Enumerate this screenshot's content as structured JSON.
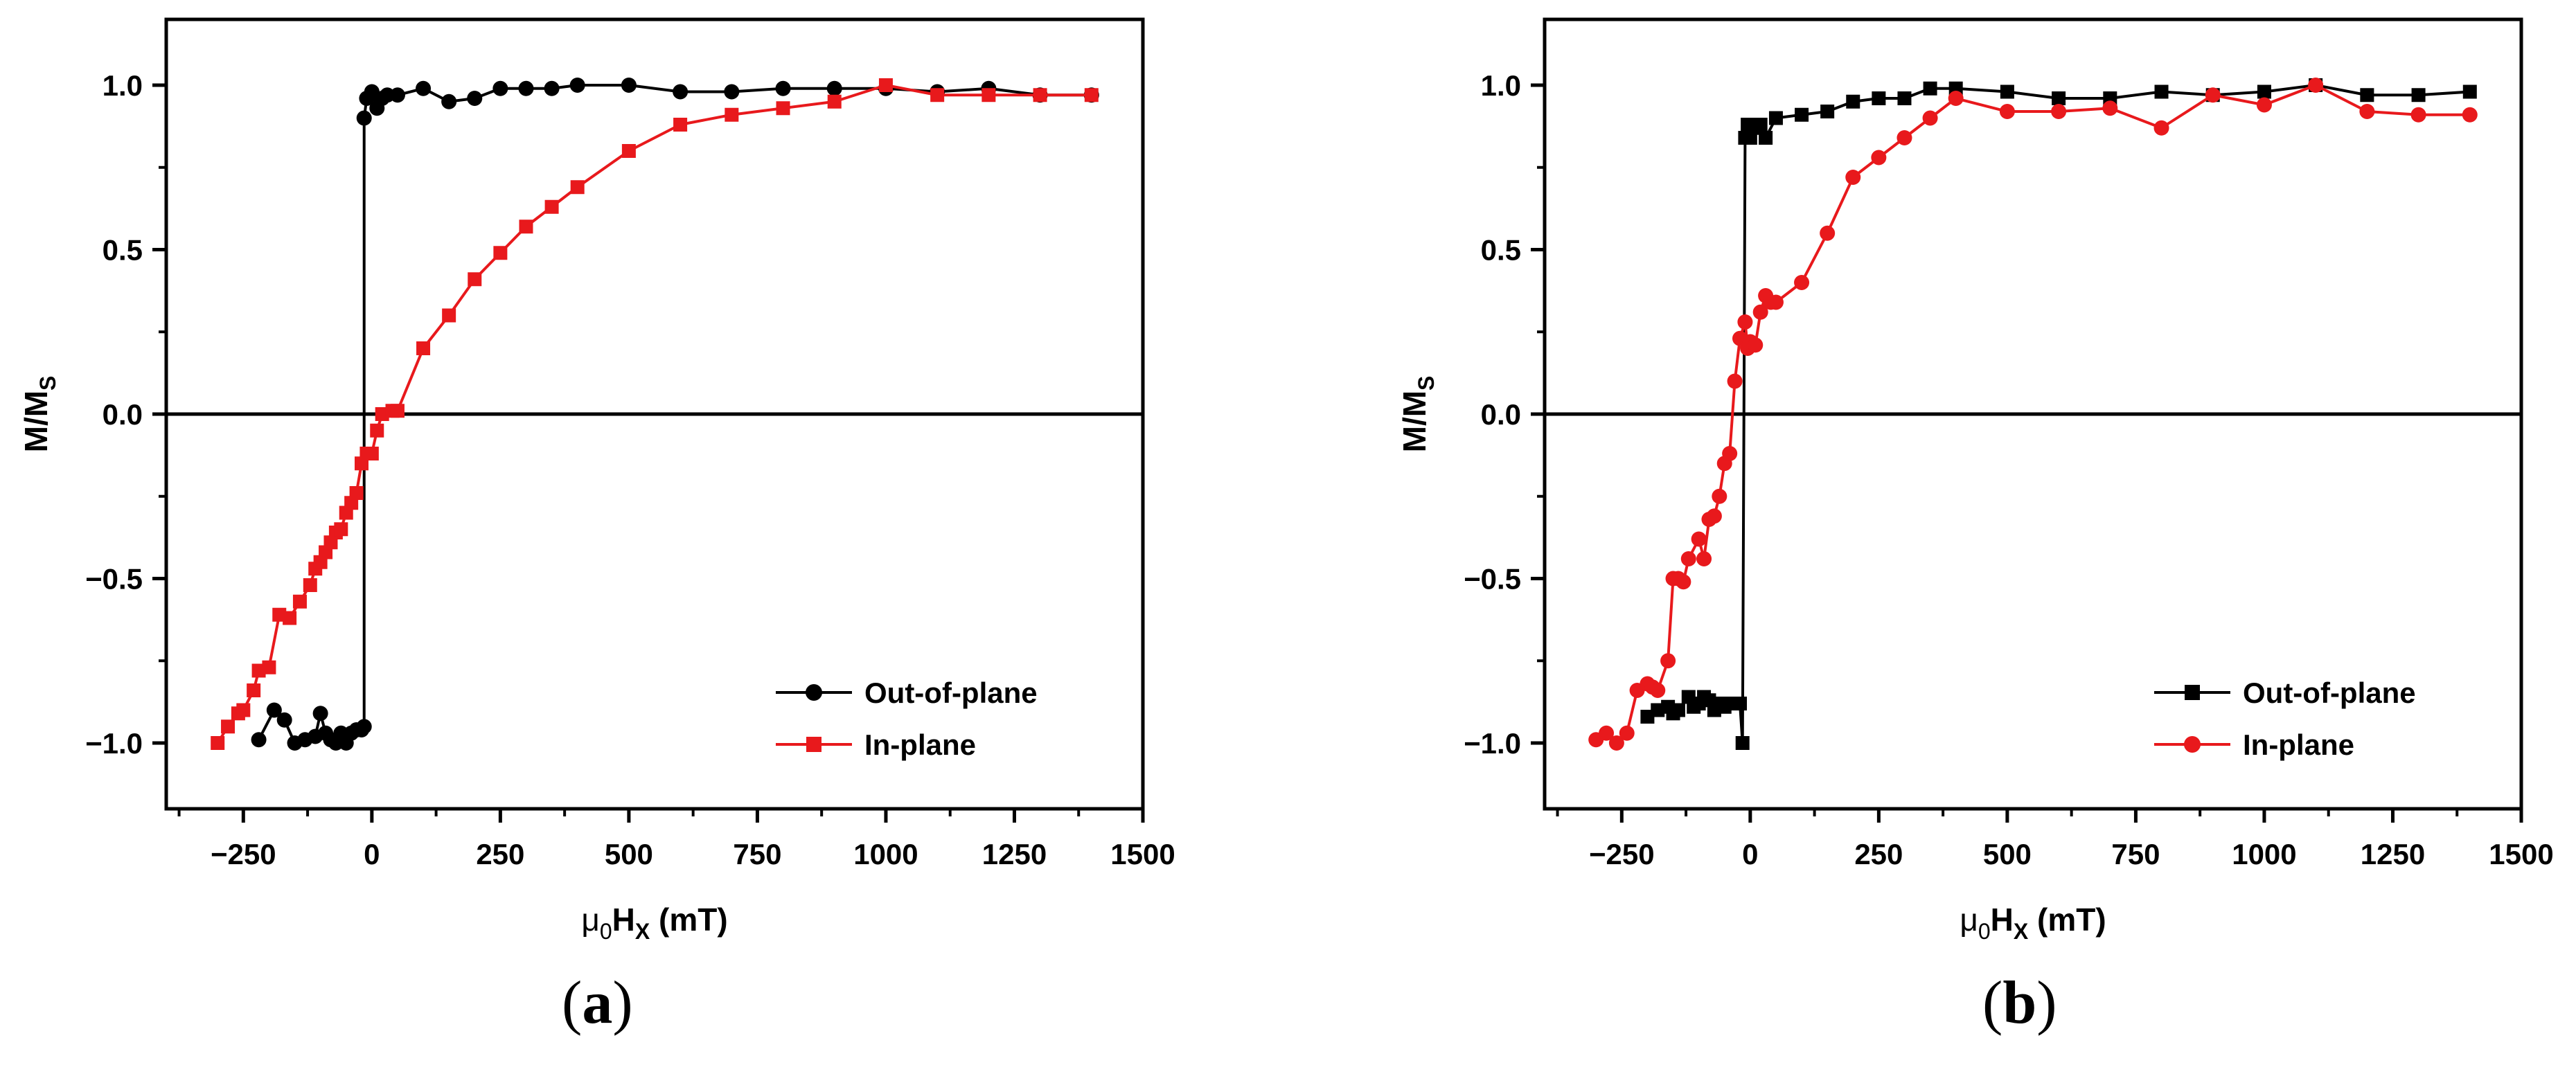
{
  "chart_data": [
    {
      "type": "line",
      "panel_label": "a",
      "xlabel_parts": [
        "μ",
        "0",
        "H",
        "X",
        " (mT)"
      ],
      "ylabel_parts": [
        "M/M",
        "S"
      ],
      "xlim": [
        -400,
        1500
      ],
      "ylim": [
        -1.2,
        1.2
      ],
      "xticks": [
        -250,
        0,
        250,
        500,
        750,
        1000,
        1250,
        1500
      ],
      "xtick_labels": [
        "−250",
        "0",
        "250",
        "500",
        "750",
        "1000",
        "1250",
        "1500"
      ],
      "yticks": [
        -1.0,
        -0.5,
        0.0,
        0.5,
        1.0
      ],
      "ytick_labels": [
        "−1.0",
        "−0.5",
        "0.0",
        "0.5",
        "1.0"
      ],
      "zero_line": true,
      "legend_position": "bottom-right",
      "series": [
        {
          "name": "Out-of-plane",
          "color": "#000000",
          "marker": "circle",
          "x": [
            -220,
            -190,
            -170,
            -150,
            -130,
            -110,
            -100,
            -90,
            -80,
            -70,
            -60,
            -50,
            -40,
            -30,
            -20,
            -15,
            -15,
            -10,
            0,
            10,
            20,
            30,
            50,
            100,
            150,
            200,
            250,
            300,
            350,
            400,
            500,
            600,
            700,
            800,
            900,
            1000,
            1100,
            1200,
            1300,
            1400
          ],
          "y": [
            -0.99,
            -0.9,
            -0.93,
            -1.0,
            -0.99,
            -0.98,
            -0.91,
            -0.97,
            -0.99,
            -1.0,
            -0.97,
            -1.0,
            -0.97,
            -0.96,
            -0.96,
            -0.95,
            0.9,
            0.96,
            0.98,
            0.93,
            0.96,
            0.97,
            0.97,
            0.99,
            0.95,
            0.96,
            0.99,
            0.99,
            0.99,
            1.0,
            1.0,
            0.98,
            0.98,
            0.99,
            0.99,
            0.99,
            0.98,
            0.99,
            0.97,
            0.97
          ]
        },
        {
          "name": "In-plane",
          "color": "#e8191c",
          "marker": "square",
          "x": [
            -300,
            -280,
            -260,
            -250,
            -230,
            -220,
            -200,
            -180,
            -160,
            -140,
            -120,
            -110,
            -100,
            -90,
            -80,
            -70,
            -60,
            -50,
            -40,
            -30,
            -20,
            -10,
            0,
            10,
            20,
            40,
            50,
            100,
            150,
            200,
            250,
            300,
            350,
            400,
            500,
            600,
            700,
            800,
            900,
            1000,
            1100,
            1200,
            1300,
            1400
          ],
          "y": [
            -1.0,
            -0.95,
            -0.91,
            -0.9,
            -0.84,
            -0.78,
            -0.77,
            -0.61,
            -0.62,
            -0.57,
            -0.52,
            -0.47,
            -0.45,
            -0.42,
            -0.39,
            -0.36,
            -0.35,
            -0.3,
            -0.27,
            -0.24,
            -0.15,
            -0.12,
            -0.12,
            -0.05,
            0.0,
            0.01,
            0.01,
            0.2,
            0.3,
            0.41,
            0.49,
            0.57,
            0.63,
            0.69,
            0.8,
            0.88,
            0.91,
            0.93,
            0.95,
            1.0,
            0.97,
            0.97,
            0.97,
            0.97
          ]
        }
      ]
    },
    {
      "type": "line",
      "panel_label": "b",
      "xlabel_parts": [
        "μ",
        "0",
        "H",
        "X",
        " (mT)"
      ],
      "ylabel_parts": [
        "M/M",
        "S"
      ],
      "xlim": [
        -400,
        1500
      ],
      "ylim": [
        -1.2,
        1.2
      ],
      "xticks": [
        -250,
        0,
        250,
        500,
        750,
        1000,
        1250,
        1500
      ],
      "xtick_labels": [
        "−250",
        "0",
        "250",
        "500",
        "750",
        "1000",
        "1250",
        "1500"
      ],
      "yticks": [
        -1.0,
        -0.5,
        0.0,
        0.5,
        1.0
      ],
      "ytick_labels": [
        "−1.0",
        "−0.5",
        "0.0",
        "0.5",
        "1.0"
      ],
      "zero_line": true,
      "legend_position": "bottom-right",
      "series": [
        {
          "name": "Out-of-plane",
          "color": "#000000",
          "marker": "square",
          "x": [
            -200,
            -180,
            -160,
            -150,
            -140,
            -120,
            -110,
            -100,
            -90,
            -80,
            -70,
            -60,
            -50,
            -40,
            -30,
            -20,
            -15,
            -10,
            -5,
            0,
            10,
            20,
            30,
            50,
            100,
            150,
            200,
            250,
            300,
            350,
            400,
            500,
            600,
            700,
            800,
            900,
            1000,
            1100,
            1200,
            1300,
            1400
          ],
          "y": [
            -0.92,
            -0.9,
            -0.89,
            -0.91,
            -0.9,
            -0.86,
            -0.89,
            -0.88,
            -0.86,
            -0.87,
            -0.9,
            -0.88,
            -0.89,
            -0.88,
            -0.88,
            -0.88,
            -1.0,
            0.84,
            0.88,
            0.84,
            0.87,
            0.88,
            0.84,
            0.9,
            0.91,
            0.92,
            0.95,
            0.96,
            0.96,
            0.99,
            0.99,
            0.98,
            0.96,
            0.96,
            0.98,
            0.97,
            0.98,
            1.0,
            0.97,
            0.97,
            0.98
          ]
        },
        {
          "name": "In-plane",
          "color": "#e8191c",
          "marker": "circle",
          "x": [
            -300,
            -280,
            -260,
            -240,
            -220,
            -200,
            -190,
            -180,
            -160,
            -150,
            -140,
            -130,
            -120,
            -100,
            -90,
            -80,
            -70,
            -60,
            -50,
            -40,
            -30,
            -20,
            -10,
            -5,
            0,
            10,
            20,
            30,
            40,
            50,
            100,
            150,
            200,
            250,
            300,
            350,
            400,
            500,
            600,
            700,
            800,
            900,
            1000,
            1100,
            1200,
            1300,
            1400
          ],
          "y": [
            -0.99,
            -0.97,
            -1.0,
            -0.97,
            -0.84,
            -0.82,
            -0.83,
            -0.84,
            -0.75,
            -0.5,
            -0.5,
            -0.51,
            -0.44,
            -0.38,
            -0.44,
            -0.32,
            -0.31,
            -0.25,
            -0.15,
            -0.12,
            0.1,
            0.23,
            0.28,
            0.2,
            0.22,
            0.21,
            0.31,
            0.36,
            0.34,
            0.34,
            0.4,
            0.55,
            0.72,
            0.78,
            0.84,
            0.9,
            0.96,
            0.92,
            0.92,
            0.93,
            0.87,
            0.97,
            0.94,
            1.0,
            0.92,
            0.91,
            0.91
          ]
        }
      ]
    }
  ],
  "captions": {
    "a": {
      "open": "(",
      "letter": "a",
      "close": ")"
    },
    "b": {
      "open": "(",
      "letter": "b",
      "close": ")"
    }
  }
}
